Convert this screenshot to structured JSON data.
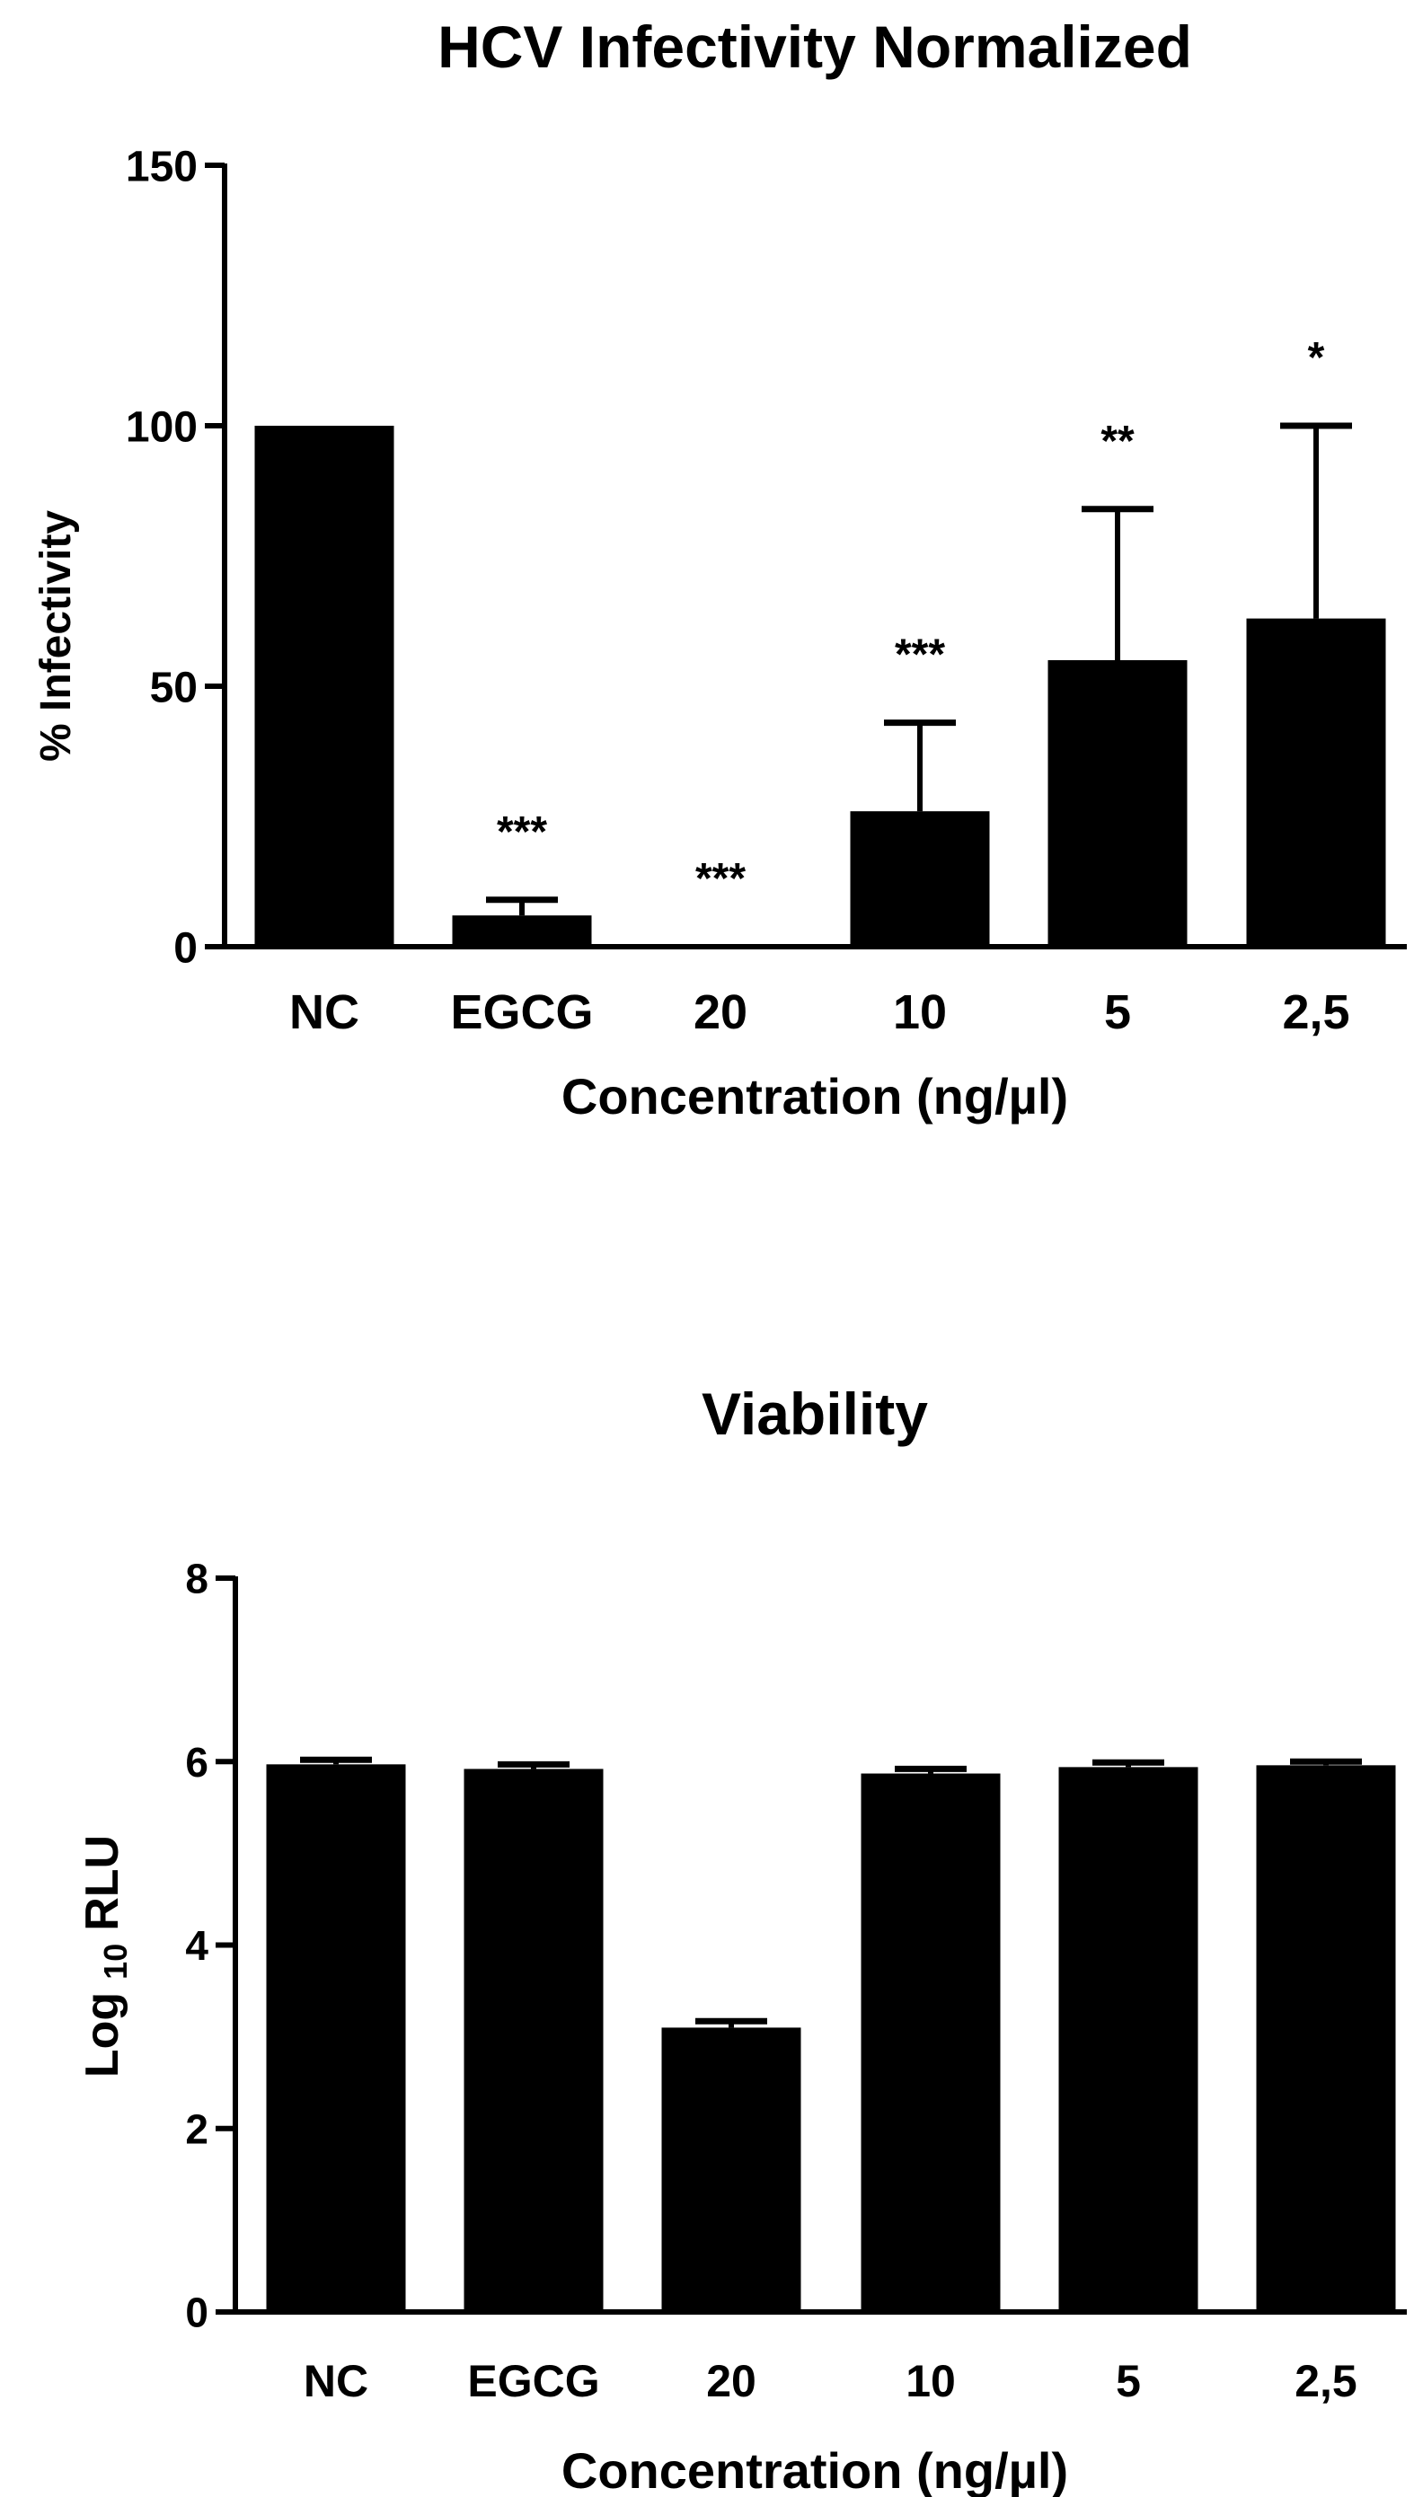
{
  "chart_data": [
    {
      "type": "bar",
      "title": "HCV Infectivity Normalized",
      "xlabel": "Concentration (ng/µl)",
      "ylabel": "% Infectivity",
      "ylim": [
        0,
        150
      ],
      "yticks": [
        0,
        50,
        100,
        150
      ],
      "categories": [
        "NC",
        "EGCG",
        "20",
        "10",
        "5",
        "2,5"
      ],
      "values": [
        100,
        6,
        0,
        26,
        55,
        63
      ],
      "errors_upper": [
        0,
        3,
        0,
        17,
        29,
        37
      ],
      "significance": [
        "",
        "***",
        "***",
        "***",
        "**",
        "*"
      ],
      "bar_color": "#000000",
      "grid": false
    },
    {
      "type": "bar",
      "title": "Viability",
      "xlabel": "Concentration (ng/µl)",
      "ylabel": {
        "main": "Log",
        "subscript": "10",
        "unit": "RLU"
      },
      "ylim": [
        0,
        8
      ],
      "yticks": [
        0,
        2,
        4,
        6,
        8
      ],
      "categories": [
        "NC",
        "EGCG",
        "20",
        "10",
        "5",
        "2,5"
      ],
      "values": [
        5.97,
        5.92,
        3.1,
        5.87,
        5.94,
        5.96
      ],
      "errors_upper": [
        0.05,
        0.05,
        0.07,
        0.05,
        0.05,
        0.04
      ],
      "bar_color": "#000000",
      "grid": false
    }
  ]
}
